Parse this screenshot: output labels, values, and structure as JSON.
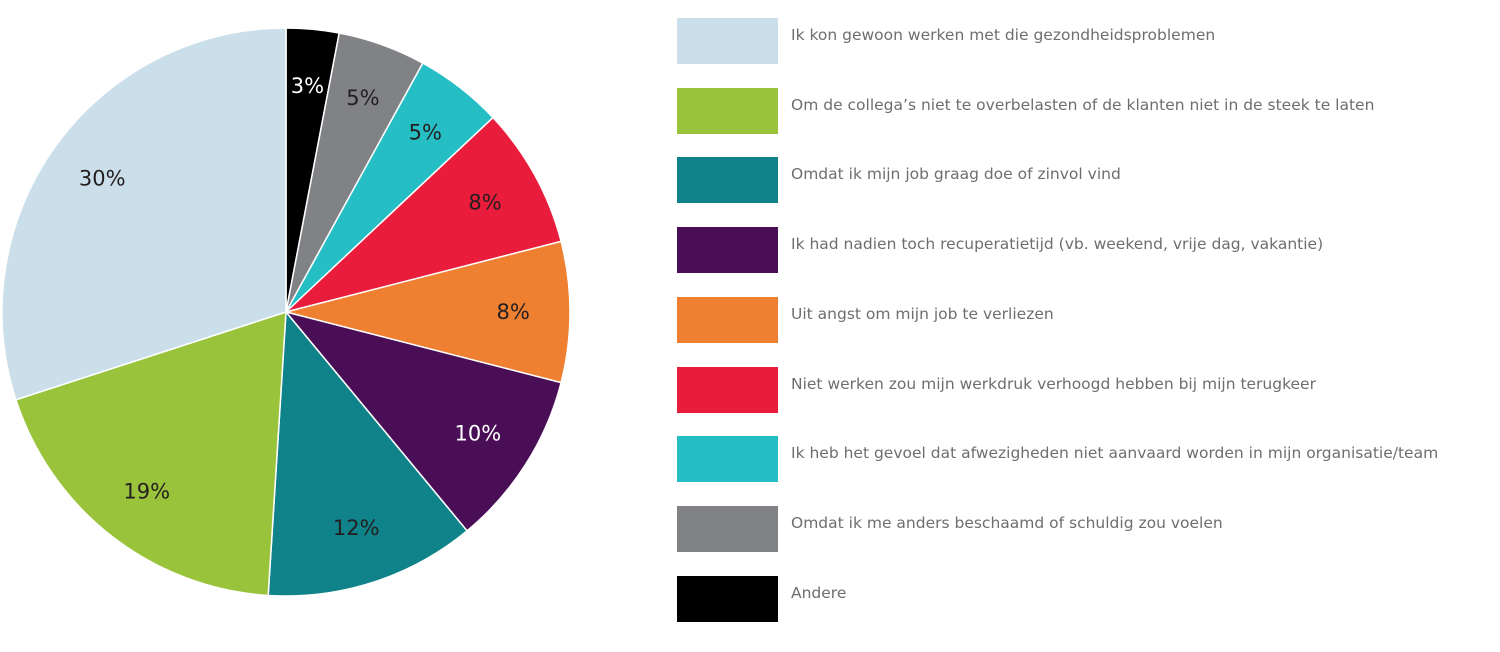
{
  "chart_data": {
    "type": "pie",
    "start": "top",
    "direction": "clockwise",
    "slices": [
      {
        "label": "Andere",
        "value": 3,
        "display": "3%",
        "color": "#000000",
        "text_color": "#ffffff"
      },
      {
        "label": "Omdat ik me anders beschaamd of schuldig zou voelen",
        "value": 5,
        "display": "5%",
        "color": "#808285",
        "text_color": "#231f20"
      },
      {
        "label": "Ik heb het gevoel dat afwezigheden niet aanvaard worden in mijn organisatie/team",
        "value": 5,
        "display": "5%",
        "color": "#26bec5",
        "text_color": "#231f20"
      },
      {
        "label": "Niet werken zou mijn werkdruk verhoogd hebben bij mijn terugkeer",
        "value": 8,
        "display": "8%",
        "color": "#ea1c3c",
        "text_color": "#231f20"
      },
      {
        "label": "Uit angst om mijn job te verliezen",
        "value": 8,
        "display": "8%",
        "color": "#ef7f31",
        "text_color": "#231f20"
      },
      {
        "label": "Ik had nadien toch recuperatietijd (vb. weekend, vrije dag, vakantie)",
        "value": 10,
        "display": "10%",
        "color": "#4a0e57",
        "text_color": "#ffffff"
      },
      {
        "label": "Omdat ik mijn job graag doe of zinvol vind",
        "value": 12,
        "display": "12%",
        "color": "#0f8389",
        "text_color": "#231f20"
      },
      {
        "label": "Om de collega's niet te overbelasten of de klanten niet in de steek te laten",
        "value": 19,
        "display": "19%",
        "color": "#9ac33c",
        "text_color": "#231f20"
      },
      {
        "label": "Ik kon gewoon werken met die gezondheidsproblemen",
        "value": 30,
        "display": "30%",
        "color": "#cbdfea",
        "text_color": "#231f20"
      }
    ],
    "legend": [
      {
        "label": "Ik kon gewoon werken met die gezondheidsproblemen",
        "color": "#cbdfea"
      },
      {
        "label": "Om de collega’s niet te overbelasten of de klanten niet in de steek te laten",
        "color": "#9ac33c"
      },
      {
        "label": "Omdat ik mijn job graag doe of zinvol vind",
        "color": "#0f8389"
      },
      {
        "label": "Ik had nadien toch recuperatietijd (vb. weekend, vrije dag, vakantie)",
        "color": "#4a0e57"
      },
      {
        "label": "Uit angst om mijn job te verliezen",
        "color": "#ef7f31"
      },
      {
        "label": "Niet werken zou mijn werkdruk verhoogd hebben bij mijn terugkeer",
        "color": "#ea1c3c"
      },
      {
        "label": "Ik heb het gevoel dat afwezigheden niet aanvaard worden in mijn organisatie/team",
        "color": "#26bec5"
      },
      {
        "label": "Omdat ik me anders beschaamd of schuldig zou voelen",
        "color": "#808285"
      },
      {
        "label": "Andere",
        "color": "#000000"
      }
    ],
    "legend_position": "right"
  }
}
